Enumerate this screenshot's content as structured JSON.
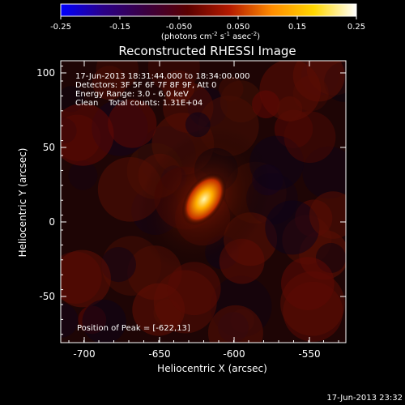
{
  "colorbar": {
    "ticks": [
      "-0.25",
      "-0.15",
      "-0.050",
      "0.050",
      "0.15",
      "0.25"
    ],
    "unit_main": "(photons cm",
    "unit_exp1": "-2",
    "unit_s": " s",
    "unit_exp2": "-1",
    "unit_asec": " asec",
    "unit_exp3": "-2",
    "unit_close": ")",
    "colors": [
      "#0000ff",
      "#2a0088",
      "#3a0040",
      "#5a0000",
      "#b41a00",
      "#ff8c00",
      "#ffd700",
      "#ffffff"
    ]
  },
  "plot": {
    "title": "Reconstructed RHESSI Image",
    "x_label": "Heliocentric X (arcsec)",
    "y_label": "Heliocentric Y (arcsec)",
    "x_ticks": [
      "-700",
      "-650",
      "-600",
      "-550"
    ],
    "y_ticks": [
      "100",
      "50",
      "0",
      "-50"
    ],
    "info_lines": [
      "17-Jun-2013 18:31:44.000 to 18:34:00.000",
      "Detectors: 3F 5F 6F 7F 8F 9F, Att 0",
      "Energy Range: 3.0 - 6.0 keV",
      "Clean    Total counts: 1.31E+04"
    ],
    "peak_label": "Position of Peak = [-622,13]",
    "colors": {
      "background": "#1e0505",
      "blob_hot": "#fff7b0",
      "blob_mid": "#ffb000",
      "blob_outer": "#c43000"
    }
  },
  "footer": {
    "timestamp": "17-Jun-2013 23:32"
  }
}
